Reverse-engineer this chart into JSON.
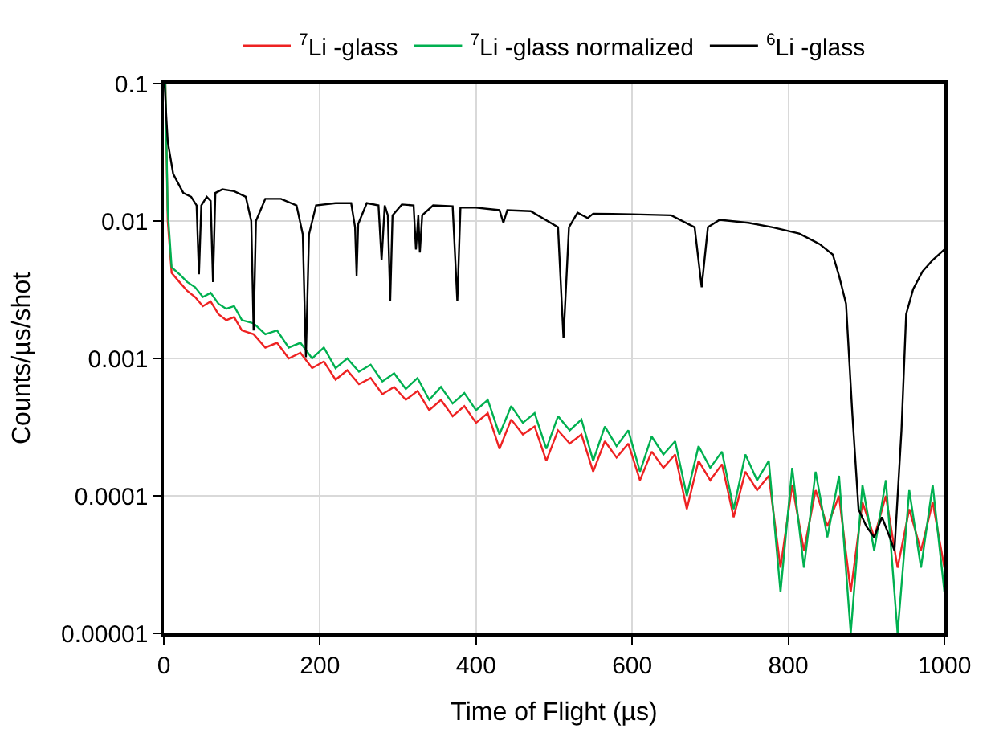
{
  "chart_data": {
    "type": "line",
    "xlabel": "Time of Flight (µs)",
    "ylabel": "Counts/µs/shot",
    "log": "y",
    "grid": true,
    "legend": "top",
    "marker": "none",
    "line_style": "solid",
    "xlim": [
      0,
      1000
    ],
    "xticks": [
      0,
      200,
      400,
      600,
      800,
      1000
    ],
    "ylim": [
      1e-05,
      0.1
    ],
    "yticks": [
      {
        "value": 1e-05,
        "label": "0.00001"
      },
      {
        "value": 0.0001,
        "label": "0.0001"
      },
      {
        "value": 0.001,
        "label": "0.001"
      },
      {
        "value": 0.01,
        "label": "0.01"
      },
      {
        "value": 0.1,
        "label": "0.1"
      }
    ],
    "x": [
      2,
      5,
      10,
      20,
      30,
      40,
      50,
      60,
      70,
      80,
      90,
      100,
      115,
      130,
      145,
      160,
      175,
      190,
      205,
      220,
      235,
      250,
      265,
      280,
      295,
      310,
      325,
      340,
      355,
      370,
      385,
      400,
      415,
      430,
      445,
      460,
      475,
      490,
      505,
      520,
      535,
      550,
      565,
      580,
      595,
      610,
      625,
      640,
      655,
      670,
      685,
      700,
      715,
      730,
      745,
      760,
      775,
      790,
      805,
      820,
      835,
      850,
      865,
      880,
      895,
      910,
      925,
      940,
      955,
      970,
      985,
      1000
    ],
    "series": [
      {
        "name": "$^{7}$Li -glass",
        "color": "#ee2222",
        "values": [
          0.1,
          0.01,
          0.0042,
          0.0036,
          0.0031,
          0.0028,
          0.0024,
          0.0026,
          0.0021,
          0.0019,
          0.002,
          0.0016,
          0.0015,
          0.0012,
          0.0013,
          0.001,
          0.0011,
          0.00085,
          0.00095,
          0.0007,
          0.00082,
          0.00065,
          0.00072,
          0.00055,
          0.00062,
          0.0005,
          0.00058,
          0.00042,
          0.0005,
          0.00038,
          0.00045,
          0.00034,
          0.0004,
          0.00022,
          0.00036,
          0.00028,
          0.00032,
          0.00018,
          0.0003,
          0.00024,
          0.00028,
          0.00015,
          0.00025,
          0.00019,
          0.00024,
          0.00013,
          0.00021,
          0.00016,
          0.0002,
          8e-05,
          0.00018,
          0.00013,
          0.00017,
          7e-05,
          0.00015,
          0.00011,
          0.00014,
          3e-05,
          0.00012,
          4e-05,
          0.00011,
          6e-05,
          0.0001,
          2e-05,
          9e-05,
          5e-05,
          0.0001,
          3e-05,
          8e-05,
          4e-05,
          9e-05,
          3e-05
        ]
      },
      {
        "name": "$^{7}$Li -glass normalized",
        "color": "#00b050",
        "values": [
          0.1,
          0.012,
          0.0046,
          0.0041,
          0.0036,
          0.0033,
          0.0028,
          0.003,
          0.0025,
          0.0023,
          0.0024,
          0.0019,
          0.0018,
          0.0015,
          0.0016,
          0.0012,
          0.0013,
          0.001,
          0.0012,
          0.00085,
          0.001,
          0.0008,
          0.0009,
          0.00068,
          0.00078,
          0.0006,
          0.00072,
          0.0005,
          0.00062,
          0.00047,
          0.00056,
          0.00042,
          0.0005,
          0.00028,
          0.00045,
          0.00034,
          0.0004,
          0.00022,
          0.00038,
          0.0003,
          0.00036,
          0.00018,
          0.00032,
          0.00023,
          0.0003,
          0.00015,
          0.00027,
          0.0002,
          0.00025,
          0.0001,
          0.00023,
          0.00016,
          0.00021,
          8e-05,
          0.0002,
          0.00013,
          0.00018,
          2e-05,
          0.00016,
          3e-05,
          0.00015,
          5e-05,
          0.00014,
          1e-05,
          0.00012,
          4e-05,
          0.00013,
          1e-05,
          0.00011,
          3e-05,
          0.00012,
          2e-05
        ]
      },
      {
        "name": "$^{6}$Li -glass",
        "color": "#000000",
        "x": [
          1,
          3,
          5,
          8,
          12,
          18,
          25,
          35,
          42,
          45,
          48,
          55,
          60,
          63,
          66,
          75,
          90,
          105,
          112,
          115,
          118,
          130,
          150,
          170,
          178,
          182,
          186,
          195,
          220,
          240,
          245,
          247,
          249,
          260,
          275,
          279,
          283,
          287,
          290,
          293,
          305,
          320,
          323,
          326,
          328,
          331,
          345,
          370,
          376,
          380,
          400,
          430,
          435,
          440,
          470,
          505,
          512,
          519,
          530,
          543,
          550,
          600,
          650,
          680,
          689,
          697,
          712,
          749,
          780,
          814,
          840,
          857,
          865,
          874,
          882,
          890,
          900,
          910,
          920,
          930,
          936,
          945,
          951,
          960,
          972,
          985,
          1000
        ],
        "values": [
          0.1,
          0.06,
          0.038,
          0.03,
          0.022,
          0.019,
          0.016,
          0.015,
          0.013,
          0.0041,
          0.013,
          0.015,
          0.014,
          0.0036,
          0.016,
          0.017,
          0.0165,
          0.015,
          0.01,
          0.0016,
          0.01,
          0.0145,
          0.0145,
          0.013,
          0.008,
          0.00102,
          0.008,
          0.013,
          0.0135,
          0.0135,
          0.009,
          0.004,
          0.0095,
          0.0135,
          0.013,
          0.0052,
          0.013,
          0.011,
          0.0026,
          0.011,
          0.0132,
          0.013,
          0.0062,
          0.011,
          0.0059,
          0.011,
          0.013,
          0.0128,
          0.0026,
          0.0125,
          0.0125,
          0.012,
          0.0097,
          0.012,
          0.0118,
          0.009,
          0.0014,
          0.009,
          0.0115,
          0.0105,
          0.0113,
          0.0112,
          0.011,
          0.009,
          0.0033,
          0.009,
          0.0102,
          0.0097,
          0.009,
          0.0081,
          0.0068,
          0.0057,
          0.004,
          0.0025,
          0.0004,
          8e-05,
          6e-05,
          5e-05,
          7e-05,
          5e-05,
          4e-05,
          0.0003,
          0.0021,
          0.0032,
          0.0043,
          0.0052,
          0.0062
        ]
      }
    ]
  }
}
